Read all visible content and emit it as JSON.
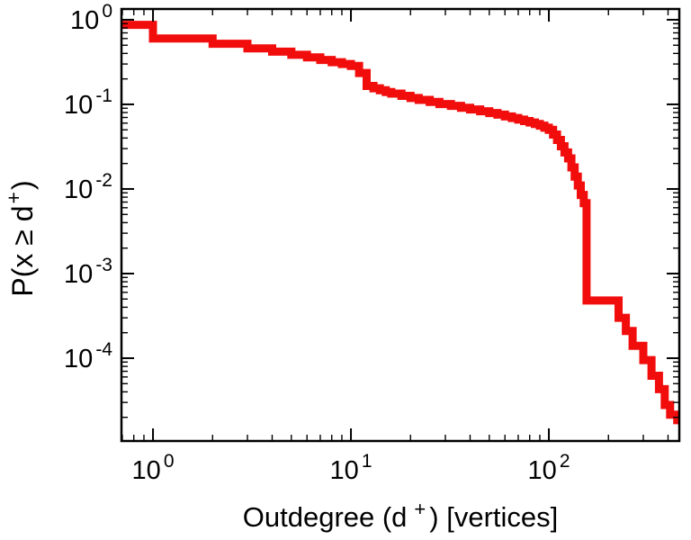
{
  "page": {
    "background": "#ffffff"
  },
  "chart_data": {
    "type": "line",
    "style": "log-log step CCDF (complementary cumulative distribution)",
    "title": "",
    "xlabel": "Outdegree (d+) [vertices]",
    "ylabel": "P(x ≥ d+)",
    "x_scale": "log",
    "y_scale": "log",
    "xlim": [
      0.693,
      456
    ],
    "ylim": [
      1.05e-05,
      1.34
    ],
    "grid": false,
    "legend": "none",
    "axis_color": "#000000",
    "line_color": "#f20d0d",
    "labels": {
      "x_title_pre": "Outdegree (d",
      "x_title_sup": "+",
      "x_title_post": ") [vertices]",
      "y_title_pre": "P(x ≥ d",
      "y_title_sup": "+",
      "y_title_post": ")"
    },
    "x_ticks": [
      {
        "x": 1,
        "base": "10",
        "exp": "0"
      },
      {
        "x": 10,
        "base": "10",
        "exp": "1"
      },
      {
        "x": 100,
        "base": "10",
        "exp": "2"
      }
    ],
    "y_ticks": [
      {
        "y": 1,
        "base": "10",
        "exp": "0"
      },
      {
        "y": 0.1,
        "base": "10",
        "exp": "-1"
      },
      {
        "y": 0.01,
        "base": "10",
        "exp": "-2"
      },
      {
        "y": 0.001,
        "base": "10",
        "exp": "-3"
      },
      {
        "y": 0.0001,
        "base": "10",
        "exp": "-4"
      }
    ],
    "points": [
      [
        0.693,
        0.87
      ],
      [
        1,
        0.6
      ],
      [
        2,
        0.52
      ],
      [
        3,
        0.46
      ],
      [
        4,
        0.42
      ],
      [
        5,
        0.385
      ],
      [
        6,
        0.36
      ],
      [
        7,
        0.335
      ],
      [
        8,
        0.315
      ],
      [
        9,
        0.3
      ],
      [
        10,
        0.285
      ],
      [
        11,
        0.235
      ],
      [
        12,
        0.165
      ],
      [
        13,
        0.155
      ],
      [
        14,
        0.147
      ],
      [
        15,
        0.14
      ],
      [
        16,
        0.134
      ],
      [
        18,
        0.126
      ],
      [
        20,
        0.119
      ],
      [
        22,
        0.113
      ],
      [
        25,
        0.107
      ],
      [
        28,
        0.101
      ],
      [
        32,
        0.096
      ],
      [
        36,
        0.091
      ],
      [
        40,
        0.087
      ],
      [
        45,
        0.083
      ],
      [
        50,
        0.079
      ],
      [
        55,
        0.0755
      ],
      [
        60,
        0.072
      ],
      [
        65,
        0.069
      ],
      [
        70,
        0.066
      ],
      [
        75,
        0.0635
      ],
      [
        80,
        0.061
      ],
      [
        85,
        0.0585
      ],
      [
        90,
        0.056
      ],
      [
        95,
        0.053
      ],
      [
        100,
        0.05
      ],
      [
        105,
        0.044
      ],
      [
        110,
        0.038
      ],
      [
        115,
        0.032
      ],
      [
        120,
        0.027
      ],
      [
        125,
        0.023
      ],
      [
        130,
        0.018
      ],
      [
        135,
        0.014
      ],
      [
        140,
        0.011
      ],
      [
        145,
        0.0085
      ],
      [
        150,
        0.0068
      ],
      [
        155,
        0.00048
      ],
      [
        225,
        0.0003
      ],
      [
        245,
        0.00021
      ],
      [
        265,
        0.00014
      ],
      [
        300,
        9.5e-05
      ],
      [
        330,
        6.2e-05
      ],
      [
        360,
        4.3e-05
      ],
      [
        385,
        2.8e-05
      ],
      [
        410,
        2.15e-05
      ],
      [
        445,
        1.85e-05
      ],
      [
        456,
        1.85e-05
      ]
    ]
  }
}
